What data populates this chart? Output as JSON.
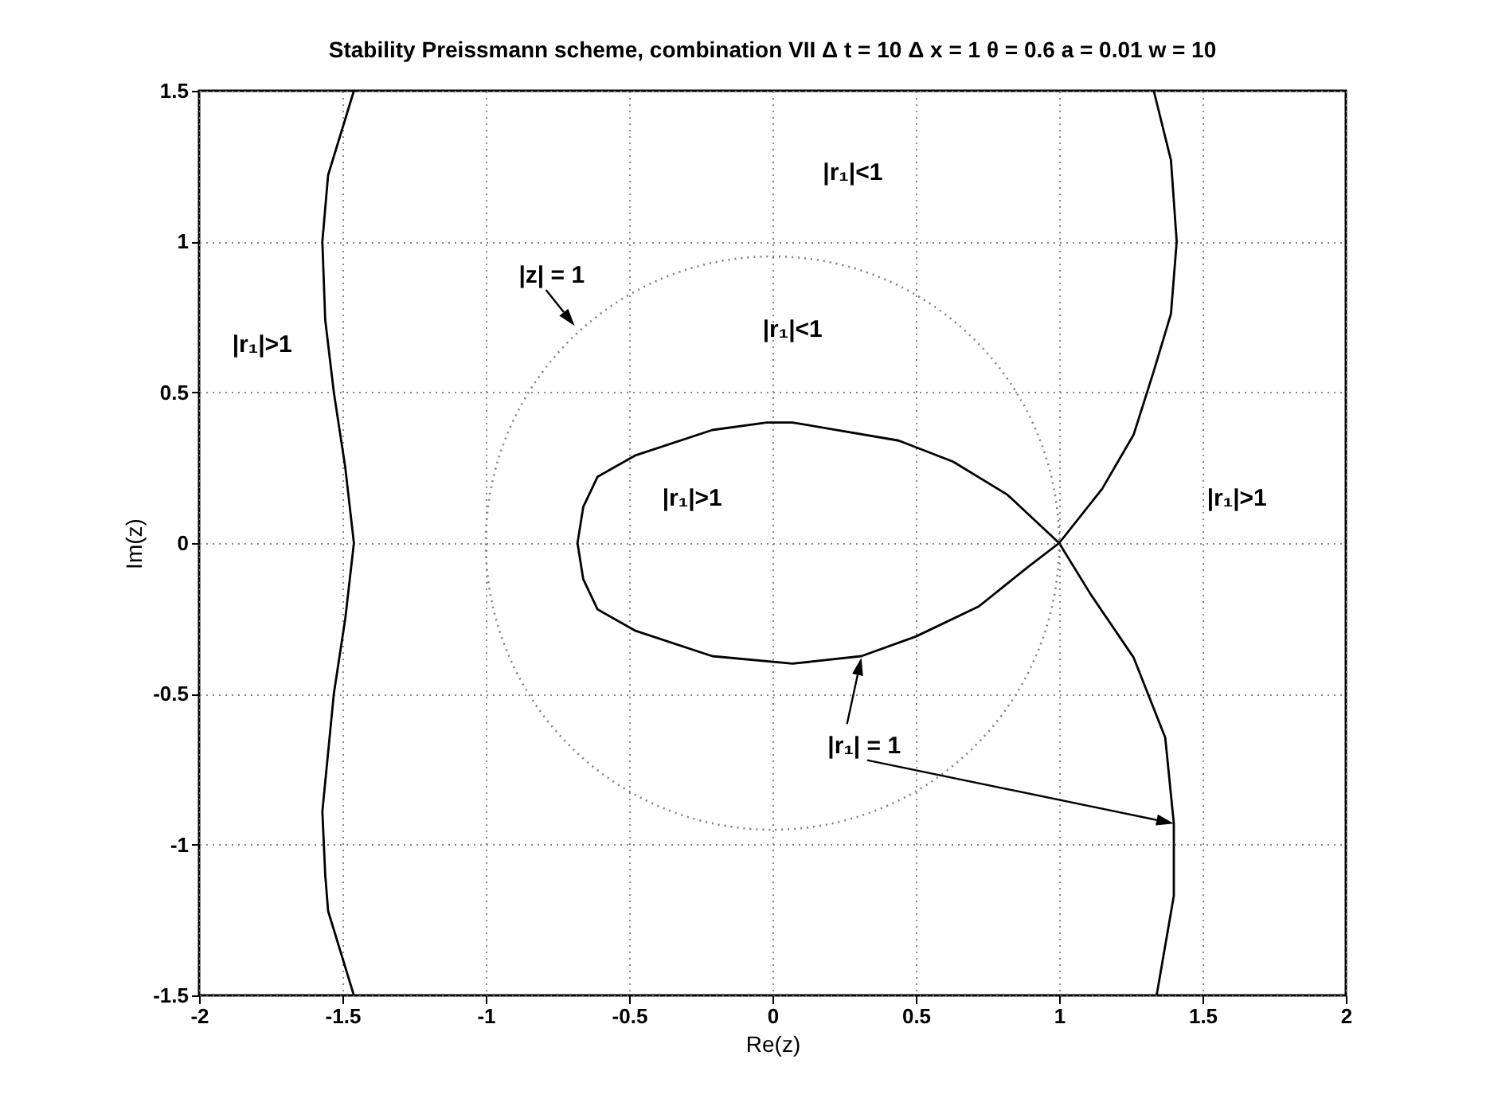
{
  "chart_data": {
    "type": "line",
    "title": "Stability Preissmann scheme, combination VII Δ t = 10 Δ x = 1 θ = 0.6 a = 0.01 w = 10",
    "xlabel": "Re(z)",
    "ylabel": "Im(z)",
    "xlim": [
      -2,
      2
    ],
    "xticks": [
      {
        "value": -2,
        "label": "-2"
      },
      -1.5,
      {
        "value": -1,
        "label": "-1"
      },
      -0.5,
      {
        "value": 0,
        "label": "0"
      },
      0.5,
      {
        "value": 1,
        "label": "1"
      },
      1.5,
      {
        "value": 2,
        "label": "2"
      }
    ],
    "ylim": [
      -1.5,
      1.5
    ],
    "yticks": [
      -1.5,
      {
        "value": -1,
        "label": "-1"
      },
      -0.5,
      {
        "value": 0,
        "label": "0"
      },
      0.5,
      {
        "value": 1,
        "label": "1"
      },
      1.5
    ],
    "grid": true,
    "series": [
      {
        "color": "#000000",
        "x": [
          -1.46,
          -1.55,
          -1.57,
          -1.56,
          -1.53,
          -1.49,
          -1.46,
          -1.49,
          -1.53,
          -1.57,
          -1.56,
          -1.55,
          -1.46
        ],
        "values": [
          1.5,
          1.22,
          1.0,
          0.74,
          0.5,
          0.25,
          0,
          -0.25,
          -0.5,
          -0.89,
          -1.1,
          -1.22,
          -1.5
        ]
      },
      {
        "color": "#000000",
        "x": [
          1.33,
          1.39,
          1.41,
          1.39,
          1.33,
          1.26,
          1.15,
          1
        ],
        "values": [
          1.5,
          1.27,
          1.0,
          0.76,
          0.57,
          0.36,
          0.18,
          0
        ]
      },
      {
        "color": "#000000",
        "x": [
          1,
          1.11,
          1.26,
          1.37,
          1.4,
          1.4,
          1.34
        ],
        "values": [
          0,
          -0.17,
          -0.38,
          -0.645,
          -0.93,
          -1.17,
          -1.5
        ]
      }
    ],
    "annotations": [
      "|r₁|<1",
      "|r₁|<1",
      "|r₁|>1",
      "|r₁|>1",
      "|r₁|>1",
      "|z| = 1",
      "|r₁| = 1"
    ]
  }
}
